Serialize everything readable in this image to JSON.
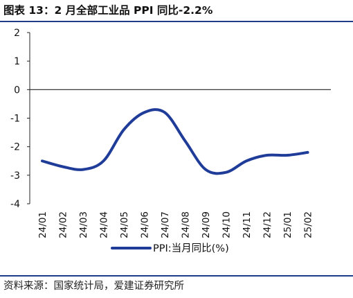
{
  "figure": {
    "title": "图表 13：2 月全部工业品 PPI 同比-2.2%",
    "source": "资料来源：国家统计局，爱建证券研究所"
  },
  "chart_data": {
    "type": "line",
    "title": "图表 13：2 月全部工业品 PPI 同比-2.2%",
    "xlabel": "",
    "ylabel": "",
    "categories": [
      "24/01",
      "24/02",
      "24/03",
      "24/04",
      "24/05",
      "24/06",
      "24/07",
      "24/08",
      "24/09",
      "24/10",
      "24/11",
      "24/12",
      "25/01",
      "25/02"
    ],
    "series": [
      {
        "name": "PPI:当月同比(%)",
        "color": "#1f3c99",
        "values": [
          -2.5,
          -2.7,
          -2.8,
          -2.5,
          -1.4,
          -0.8,
          -0.8,
          -1.8,
          -2.8,
          -2.9,
          -2.5,
          -2.3,
          -2.3,
          -2.2
        ]
      }
    ],
    "yticks": [
      2,
      1,
      0,
      -1,
      -2,
      -3,
      -4
    ],
    "ylim": [
      -4,
      2
    ],
    "grid": false,
    "zero_line": true,
    "legend_position": "bottom"
  }
}
